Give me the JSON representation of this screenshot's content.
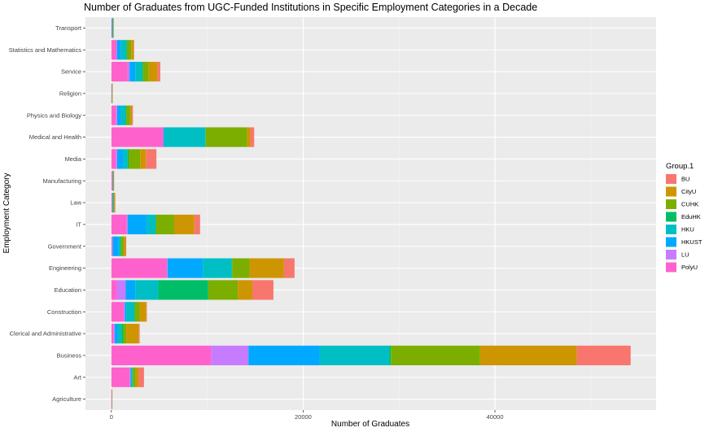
{
  "chart_data": {
    "type": "bar",
    "orientation": "horizontal",
    "stacked": true,
    "title": "Number of Graduates from UGC-Funded Institutions in Specific Employment Categories in a Decade",
    "xlabel": "Number of Graduates",
    "ylabel": "Employment Category",
    "xlim": [
      -2700,
      56800
    ],
    "xticks": [
      0,
      20000,
      40000
    ],
    "xtick_labels": [
      "0",
      "20000",
      "40000"
    ],
    "grid": true,
    "legend_position": "right",
    "legend_title": "Group.1",
    "categories": [
      "Agriculture",
      "Art",
      "Business",
      "Clerical and Administrative",
      "Construction",
      "Education",
      "Engineering",
      "Government",
      "IT",
      "Law",
      "Manufacturing",
      "Media",
      "Medical and Health",
      "Physics and Biology",
      "Religion",
      "Service",
      "Statistics and Mathematics",
      "Transport"
    ],
    "series": [
      {
        "name": "PolyU",
        "color": "#FF61CC",
        "values": [
          10,
          1900,
          10400,
          250,
          1300,
          600,
          5800,
          100,
          1600,
          60,
          60,
          500,
          5400,
          500,
          10,
          1700,
          550,
          20
        ]
      },
      {
        "name": "LU",
        "color": "#C77CFF",
        "values": [
          5,
          100,
          3900,
          100,
          100,
          900,
          50,
          50,
          100,
          30,
          60,
          100,
          30,
          100,
          5,
          200,
          30,
          10
        ]
      },
      {
        "name": "HKUST",
        "color": "#00A9FF",
        "values": [
          10,
          50,
          7400,
          300,
          150,
          1000,
          3700,
          600,
          2000,
          40,
          20,
          600,
          60,
          400,
          5,
          600,
          400,
          30
        ]
      },
      {
        "name": "HKU",
        "color": "#00BFC4",
        "values": [
          10,
          150,
          7300,
          400,
          800,
          2400,
          3000,
          200,
          900,
          50,
          20,
          500,
          4300,
          500,
          10,
          700,
          600,
          100
        ]
      },
      {
        "name": "EduHK",
        "color": "#00BE67",
        "values": [
          5,
          50,
          150,
          200,
          100,
          5200,
          50,
          50,
          50,
          10,
          10,
          100,
          50,
          50,
          20,
          100,
          50,
          5
        ]
      },
      {
        "name": "CUHK",
        "color": "#7CAE00",
        "values": [
          10,
          300,
          9300,
          300,
          500,
          3100,
          1800,
          300,
          1900,
          100,
          50,
          1200,
          4300,
          400,
          20,
          600,
          450,
          20
        ]
      },
      {
        "name": "CityU",
        "color": "#CD9600",
        "values": [
          5,
          300,
          10100,
          1300,
          700,
          1500,
          3600,
          200,
          2100,
          80,
          20,
          600,
          350,
          200,
          5,
          900,
          250,
          10
        ]
      },
      {
        "name": "BU",
        "color": "#F8766D",
        "values": [
          5,
          550,
          5600,
          100,
          50,
          2200,
          1100,
          50,
          600,
          20,
          10,
          1100,
          400,
          100,
          5,
          300,
          50,
          5
        ]
      }
    ]
  }
}
